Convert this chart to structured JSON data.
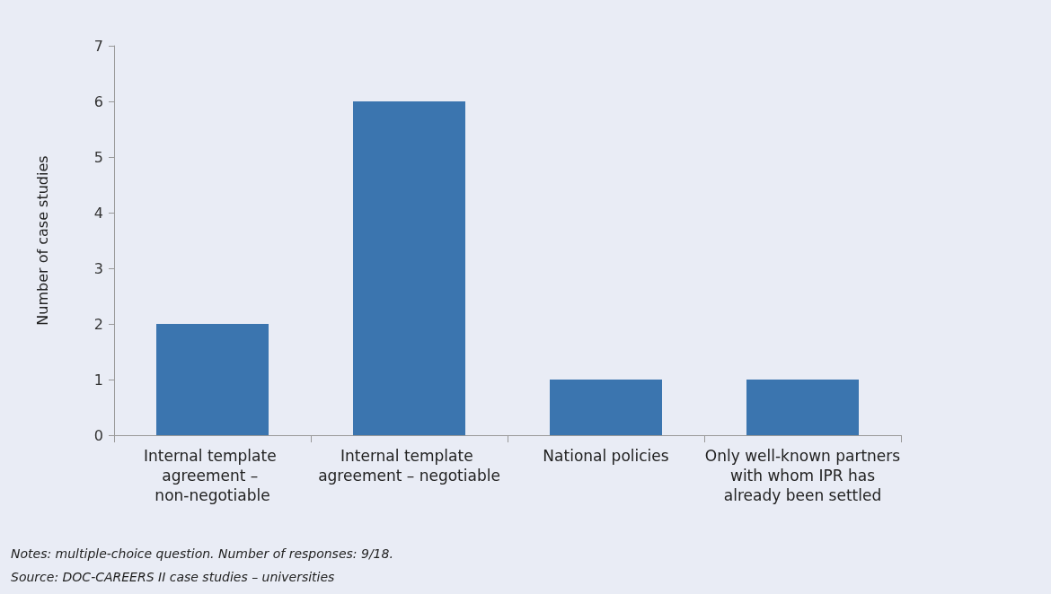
{
  "chart_data": {
    "type": "bar",
    "ylabel": "Number of case studies",
    "categories": [
      "Internal template agreement – non-negotiable",
      "Internal template agreement – negotiable",
      "National policies",
      "Only well-known partners with whom IPR has already been settled"
    ],
    "values": [
      2,
      6,
      1,
      1
    ],
    "color": "#3b75af",
    "ylim": [
      0,
      7
    ],
    "yticks": [
      0,
      1,
      2,
      3,
      4,
      5,
      6,
      7
    ],
    "grid": false,
    "annotations": [
      "Notes: multiple-choice question. Number of responses: 9/18.",
      "Source: DOC-CAREERS II case studies – universities"
    ]
  }
}
